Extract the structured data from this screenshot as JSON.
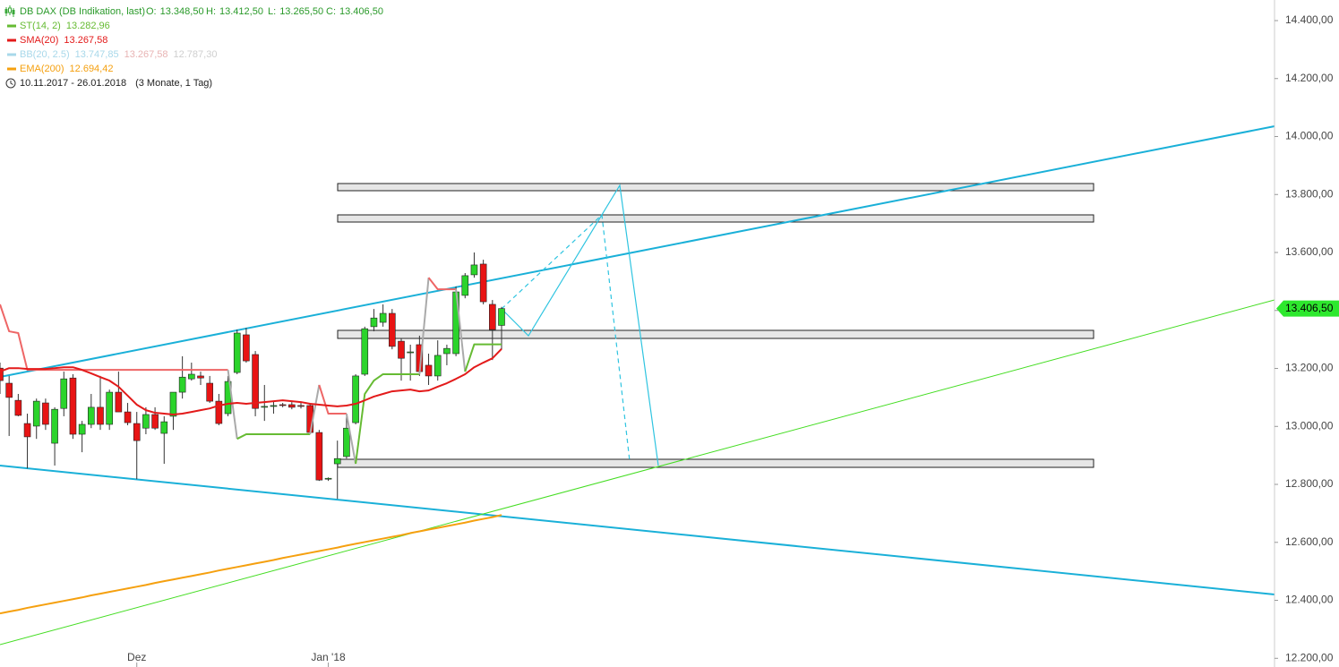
{
  "chart_data": {
    "type": "candlestick",
    "title": "DB DAX (DB Indikation, last)",
    "ohlc_keys": [
      "O:",
      "H:",
      "L:",
      "C:"
    ],
    "last_ohlc_labels": [
      "13.348,50",
      "13.412,50",
      "13.265,50",
      "13.406,50"
    ],
    "date_range": "10.11.2017 - 26.01.2018",
    "period": "(3 Monate, 1 Tag)",
    "categories": [
      null,
      null,
      null,
      null,
      null,
      null,
      null,
      null,
      null,
      null,
      null,
      null,
      null,
      null,
      null,
      "Dez",
      null,
      null,
      null,
      null,
      null,
      null,
      null,
      null,
      null,
      null,
      null,
      null,
      null,
      null,
      null,
      null,
      null,
      null,
      null,
      null,
      "Jan '18",
      null,
      null,
      null,
      null,
      null,
      null,
      null,
      null,
      null,
      null,
      null,
      null,
      null,
      null,
      null,
      null,
      null,
      null,
      null
    ],
    "open": [
      13201,
      13149,
      13090,
      13010,
      13001,
      13081,
      12942,
      13062,
      13167,
      12973,
      13007,
      13066,
      13007,
      13118,
      13050,
      13010,
      12994,
      13041,
      12976,
      13035,
      13118,
      13164,
      13174,
      13149,
      13087,
      13044,
      13186,
      13316,
      13248,
      13066,
      13069,
      13075,
      13075,
      13072,
      13072,
      12979,
      12818,
      12871,
      12896,
      13013,
      13180,
      13344,
      13359,
      13390,
      13294,
      13254,
      13282,
      13211,
      13174,
      13251,
      13251,
      13452,
      13523,
      13560,
      13421,
      13348.5
    ],
    "high": [
      13220,
      13174,
      13112,
      13044,
      13096,
      13096,
      13066,
      13189,
      13180,
      13019,
      13112,
      13174,
      13127,
      13189,
      13081,
      13050,
      13066,
      13066,
      13035,
      13118,
      13242,
      13220,
      13189,
      13174,
      13112,
      13174,
      13334,
      13340,
      13260,
      13143,
      13087,
      13081,
      13084,
      13081,
      13081,
      12988,
      12824,
      12951,
      13044,
      13180,
      13344,
      13405,
      13421,
      13405,
      13303,
      13282,
      13313,
      13251,
      13297,
      13282,
      13483,
      13529,
      13600,
      13575,
      13436,
      13412.5
    ],
    "low": [
      13112,
      12967,
      13035,
      12855,
      12957,
      12988,
      12865,
      13035,
      12957,
      12911,
      12994,
      12988,
      12988,
      13050,
      13004,
      12818,
      12973,
      12988,
      12871,
      12988,
      13096,
      13158,
      13143,
      13081,
      13004,
      13035,
      13180,
      13220,
      13035,
      13019,
      13044,
      13066,
      13059,
      13062,
      12973,
      12812,
      12812,
      12750,
      12889,
      13007,
      13174,
      13328,
      13344,
      13266,
      13158,
      13158,
      13174,
      13143,
      13158,
      13211,
      13242,
      13442,
      13513,
      13421,
      13229,
      13265.5
    ],
    "close": [
      13158,
      13100,
      13038,
      12964,
      13087,
      13007,
      13059,
      13164,
      12973,
      13007,
      13066,
      13007,
      13118,
      13050,
      13013,
      12951,
      13041,
      12994,
      13016,
      13118,
      13170,
      13180,
      13167,
      13087,
      13010,
      13155,
      13322,
      13226,
      13062,
      13069,
      13072,
      13072,
      13066,
      13069,
      12979,
      12815,
      12821,
      12889,
      12994,
      13174,
      13337,
      13374,
      13390,
      13276,
      13235,
      13257,
      13189,
      13174,
      13245,
      13269,
      13464,
      13520,
      13557,
      13430,
      13334,
      13406.5
    ],
    "up_color": "#2bd42b",
    "down_color": "#e81414",
    "series": [
      {
        "name": "ST(14, 2)",
        "color": "#66bb33",
        "above_color": "#ee6666",
        "legend_value": "13.282,96",
        "values": [
          13421,
          13328,
          13322,
          13195,
          13195,
          13195,
          13195,
          13195,
          13195,
          13195,
          13195,
          13195,
          13195,
          13195,
          13195,
          13195,
          13195,
          13195,
          13195,
          13195,
          13195,
          13195,
          13195,
          13195,
          13195,
          13195,
          12957,
          12973,
          12973,
          12973,
          12973,
          12973,
          12973,
          12973,
          12973,
          13143,
          13044,
          13044,
          13044,
          12871,
          13112,
          13158,
          13180,
          13180,
          13180,
          13180,
          13180,
          13513,
          13473,
          13473,
          13473,
          13189,
          13282.96,
          13282.96,
          13282.96,
          13282.96
        ]
      },
      {
        "name": "SMA(20)",
        "color": "#e31a1a",
        "legend_value": "13.267,58",
        "values": [
          13189,
          13201,
          13201,
          13198,
          13198,
          13198,
          13201,
          13204,
          13204,
          13195,
          13183,
          13170,
          13158,
          13137,
          13106,
          13075,
          13056,
          13047,
          13044,
          13041,
          13044,
          13050,
          13056,
          13062,
          13072,
          13078,
          13081,
          13078,
          13081,
          13084,
          13087,
          13090,
          13087,
          13084,
          13078,
          13075,
          13072,
          13069,
          13072,
          13078,
          13090,
          13103,
          13112,
          13121,
          13124,
          13127,
          13121,
          13124,
          13137,
          13149,
          13164,
          13180,
          13204,
          13220,
          13235,
          13267.58
        ]
      },
      {
        "name": "EMA(200)",
        "color": "#f5a00f",
        "legend_value": "12.694,42",
        "values": [
          12355,
          12361,
          12367,
          12374,
          12380,
          12386,
          12392,
          12398,
          12404,
          12410,
          12417,
          12423,
          12429,
          12435,
          12441,
          12447,
          12453,
          12460,
          12466,
          12472,
          12478,
          12484,
          12490,
          12496,
          12503,
          12509,
          12515,
          12521,
          12527,
          12533,
          12539,
          12546,
          12552,
          12558,
          12564,
          12570,
          12576,
          12582,
          12589,
          12595,
          12601,
          12607,
          12613,
          12619,
          12625,
          12632,
          12638,
          12644,
          12650,
          12656,
          12662,
          12668,
          12675,
          12681,
          12687,
          12694.42
        ]
      }
    ],
    "bollinger": {
      "name": "BB(20, 2.5)",
      "legend_values": [
        "13.747,85",
        "13.267,58",
        "12.787,30"
      ],
      "colors": [
        "#a8d8ea",
        "#e8b4b4",
        "#cfcfcf"
      ]
    },
    "last_price": {
      "value": 13406.5,
      "label": "13.406,50"
    },
    "last_price_color": "#2ee82e",
    "ylim": [
      12170,
      14471
    ],
    "yticks": [
      {
        "value": 12200,
        "label": "12.200,00"
      },
      {
        "value": 12400,
        "label": "12.400,00"
      },
      {
        "value": 12600,
        "label": "12.600,00"
      },
      {
        "value": 12800,
        "label": "12.800,00"
      },
      {
        "value": 13000,
        "label": "13.000,00"
      },
      {
        "value": 13200,
        "label": "13.200,00"
      },
      {
        "value": 13400,
        "label": "13.400,00"
      },
      {
        "value": 13600,
        "label": "13.600,00"
      },
      {
        "value": 13800,
        "label": "13.800,00"
      },
      {
        "value": 14000,
        "label": "14.000,00"
      },
      {
        "value": 14200,
        "label": "14.200,00"
      },
      {
        "value": 14400,
        "label": "14.400,00"
      }
    ],
    "grid": false
  }
}
